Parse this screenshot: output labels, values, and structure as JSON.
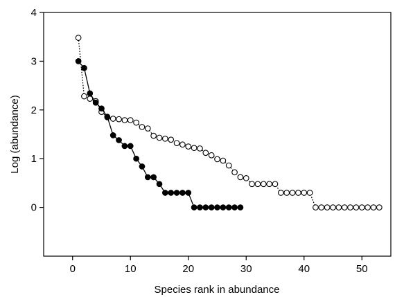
{
  "chart_data": {
    "type": "line",
    "title": "",
    "xlabel": "Species rank in abundance",
    "ylabel": "Log (abundance)",
    "xlim": [
      -5,
      55
    ],
    "ylim": [
      -1,
      4
    ],
    "xticks": [
      0,
      10,
      20,
      30,
      40,
      50
    ],
    "yticks": [
      0,
      1,
      2,
      3,
      4
    ],
    "grid": false,
    "legend": "none",
    "series": [
      {
        "marker": "open-circle",
        "line": "dotted",
        "points": [
          [
            1,
            3.48
          ],
          [
            2,
            2.28
          ],
          [
            3,
            2.23
          ],
          [
            4,
            2.18
          ],
          [
            5,
            1.96
          ],
          [
            6,
            1.85
          ],
          [
            7,
            1.82
          ],
          [
            8,
            1.81
          ],
          [
            9,
            1.79
          ],
          [
            10,
            1.79
          ],
          [
            11,
            1.74
          ],
          [
            12,
            1.65
          ],
          [
            13,
            1.62
          ],
          [
            14,
            1.47
          ],
          [
            15,
            1.43
          ],
          [
            16,
            1.41
          ],
          [
            17,
            1.39
          ],
          [
            18,
            1.32
          ],
          [
            19,
            1.29
          ],
          [
            20,
            1.25
          ],
          [
            21,
            1.22
          ],
          [
            22,
            1.21
          ],
          [
            23,
            1.12
          ],
          [
            24,
            1.07
          ],
          [
            25,
            0.99
          ],
          [
            26,
            0.96
          ],
          [
            27,
            0.86
          ],
          [
            28,
            0.72
          ],
          [
            29,
            0.62
          ],
          [
            30,
            0.6
          ],
          [
            31,
            0.48
          ],
          [
            32,
            0.48
          ],
          [
            33,
            0.48
          ],
          [
            34,
            0.48
          ],
          [
            35,
            0.48
          ],
          [
            36,
            0.3
          ],
          [
            37,
            0.3
          ],
          [
            38,
            0.3
          ],
          [
            39,
            0.3
          ],
          [
            40,
            0.3
          ],
          [
            41,
            0.3
          ],
          [
            42,
            0.0
          ],
          [
            43,
            0.0
          ],
          [
            44,
            0.0
          ],
          [
            45,
            0.0
          ],
          [
            46,
            0.0
          ],
          [
            47,
            0.0
          ],
          [
            48,
            0.0
          ],
          [
            49,
            0.0
          ],
          [
            50,
            0.0
          ],
          [
            51,
            0.0
          ],
          [
            52,
            0.0
          ],
          [
            53,
            0.0
          ]
        ]
      },
      {
        "marker": "filled-circle",
        "line": "solid",
        "points": [
          [
            1,
            3.0
          ],
          [
            2,
            2.86
          ],
          [
            3,
            2.34
          ],
          [
            4,
            2.15
          ],
          [
            5,
            2.03
          ],
          [
            6,
            1.86
          ],
          [
            7,
            1.48
          ],
          [
            8,
            1.38
          ],
          [
            9,
            1.26
          ],
          [
            10,
            1.26
          ],
          [
            11,
            1.0
          ],
          [
            12,
            0.84
          ],
          [
            13,
            0.62
          ],
          [
            14,
            0.62
          ],
          [
            15,
            0.48
          ],
          [
            16,
            0.3
          ],
          [
            17,
            0.3
          ],
          [
            18,
            0.3
          ],
          [
            19,
            0.3
          ],
          [
            20,
            0.3
          ],
          [
            21,
            0.0
          ],
          [
            22,
            0.0
          ],
          [
            23,
            0.0
          ],
          [
            24,
            0.0
          ],
          [
            25,
            0.0
          ],
          [
            26,
            0.0
          ],
          [
            27,
            0.0
          ],
          [
            28,
            0.0
          ],
          [
            29,
            0.0
          ]
        ]
      }
    ]
  }
}
